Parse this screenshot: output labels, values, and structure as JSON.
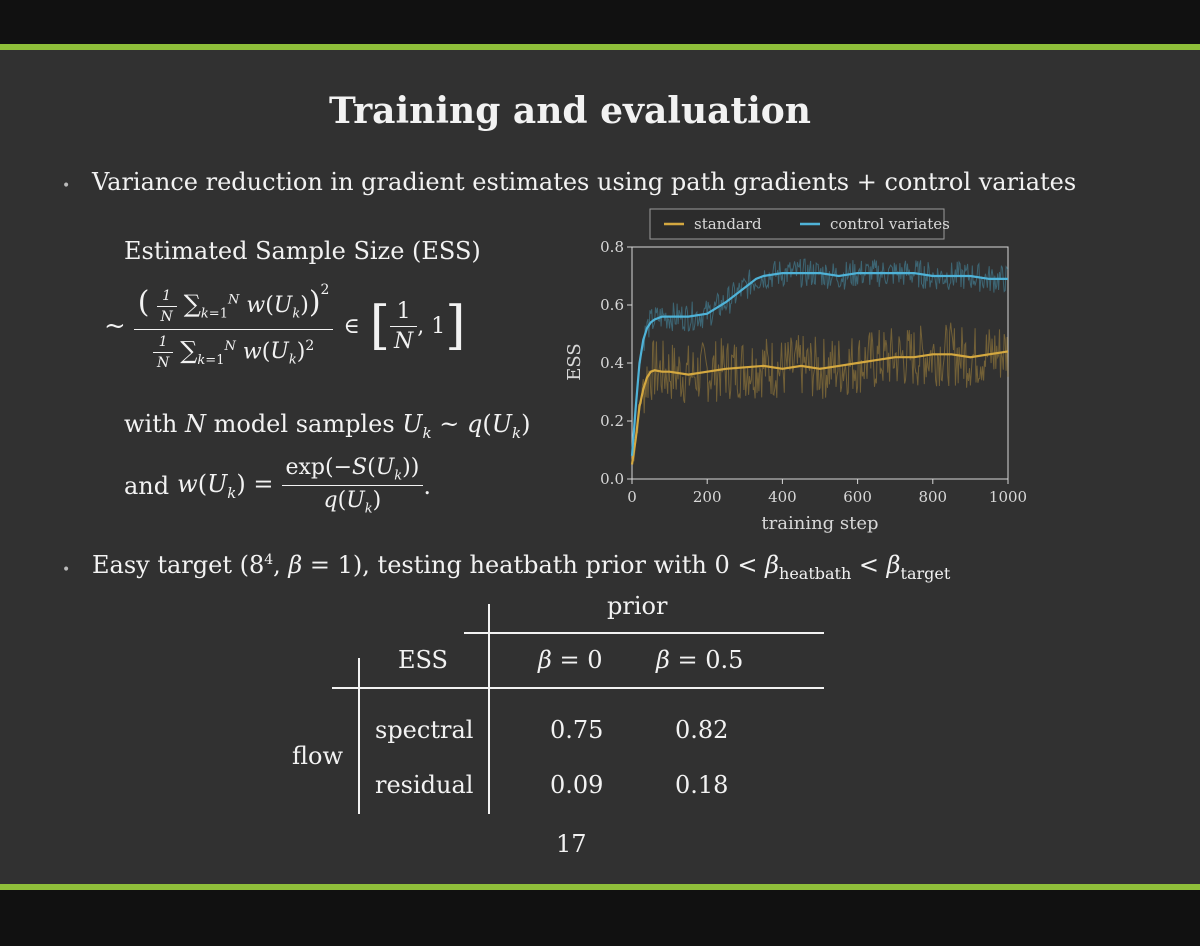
{
  "slide": {
    "title": "Training and evaluation",
    "bullet1": "Variance reduction in gradient estimates using path gradients + control variates",
    "ess_label": "Estimated Sample Size (ESS)",
    "with_text": "with",
    "model_samples_text": "model samples",
    "and_text": "and",
    "bullet2_prefix": "Easy target",
    "bullet2_mid": ", testing heatbath prior with",
    "page_number": "17"
  },
  "colors": {
    "background": "#313131",
    "accent_bar": "#8fbf3a",
    "standard_series": "#d4a840",
    "control_variates_series": "#4fb3d8"
  },
  "chart_data": {
    "type": "line",
    "xlabel": "training step",
    "ylabel": "ESS",
    "xlim": [
      0,
      1000
    ],
    "ylim": [
      0,
      0.8
    ],
    "xticks": [
      0,
      200,
      400,
      600,
      800,
      1000
    ],
    "yticks": [
      0.0,
      0.2,
      0.4,
      0.6,
      0.8
    ],
    "legend_position": "top",
    "grid": false,
    "series": [
      {
        "name": "standard",
        "color": "#d4a840",
        "x": [
          0,
          10,
          20,
          30,
          40,
          50,
          60,
          80,
          100,
          150,
          200,
          250,
          300,
          350,
          400,
          450,
          500,
          550,
          600,
          650,
          700,
          750,
          800,
          850,
          900,
          950,
          1000
        ],
        "y": [
          0.05,
          0.14,
          0.25,
          0.31,
          0.35,
          0.37,
          0.375,
          0.37,
          0.37,
          0.36,
          0.37,
          0.38,
          0.385,
          0.39,
          0.38,
          0.39,
          0.38,
          0.39,
          0.4,
          0.41,
          0.42,
          0.42,
          0.43,
          0.43,
          0.42,
          0.43,
          0.44
        ]
      },
      {
        "name": "control variates",
        "color": "#4fb3d8",
        "x": [
          0,
          10,
          20,
          30,
          40,
          50,
          60,
          80,
          100,
          150,
          200,
          250,
          300,
          330,
          350,
          400,
          450,
          500,
          550,
          600,
          650,
          700,
          750,
          800,
          850,
          900,
          950,
          1000
        ],
        "y": [
          0.08,
          0.25,
          0.4,
          0.48,
          0.52,
          0.54,
          0.55,
          0.56,
          0.56,
          0.56,
          0.57,
          0.61,
          0.66,
          0.69,
          0.7,
          0.71,
          0.71,
          0.71,
          0.7,
          0.71,
          0.71,
          0.71,
          0.71,
          0.7,
          0.7,
          0.7,
          0.69,
          0.69
        ]
      }
    ]
  },
  "table": {
    "header_group": "prior",
    "corner_label": "ESS",
    "row_group": "flow",
    "rows": [
      {
        "label": "spectral",
        "beta0": "0.75",
        "beta05": "0.82"
      },
      {
        "label": "residual",
        "beta0": "0.09",
        "beta05": "0.18"
      }
    ]
  }
}
